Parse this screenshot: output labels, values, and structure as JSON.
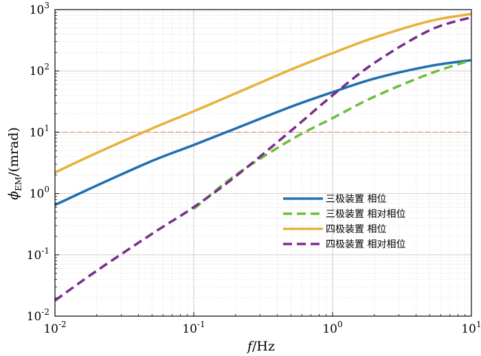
{
  "chart_data": {
    "type": "line",
    "x_scale": "log",
    "y_scale": "log",
    "xlim": [
      0.01,
      10
    ],
    "ylim": [
      0.01,
      1000
    ],
    "grid": true,
    "legend_position": "lower-right",
    "xlabel": {
      "main": "f",
      "unit": "/Hz"
    },
    "ylabel": {
      "symbol": "ϕ",
      "sub": "EM",
      "unit": "/(mrad)"
    },
    "x_ticks": [
      {
        "value": 0.01,
        "base": "10",
        "exp": "-2"
      },
      {
        "value": 0.1,
        "base": "10",
        "exp": "-1"
      },
      {
        "value": 1,
        "base": "10",
        "exp": "0"
      },
      {
        "value": 10,
        "base": "10",
        "exp": "1"
      }
    ],
    "y_ticks": [
      {
        "value": 0.01,
        "base": "10",
        "exp": "-2"
      },
      {
        "value": 0.1,
        "base": "10",
        "exp": "-1"
      },
      {
        "value": 1,
        "base": "10",
        "exp": "0"
      },
      {
        "value": 10,
        "base": "10",
        "exp": "1"
      },
      {
        "value": 100,
        "base": "10",
        "exp": "2"
      },
      {
        "value": 1000,
        "base": "10",
        "exp": "3"
      }
    ],
    "reference_line": {
      "y": 10,
      "color": "#e8967e"
    },
    "series": [
      {
        "name": "三极装置 相位",
        "color": "#1f6fb2",
        "dash": "solid",
        "x": [
          0.01,
          0.02,
          0.05,
          0.1,
          0.2,
          0.5,
          1,
          2,
          5,
          10
        ],
        "y": [
          0.65,
          1.35,
          3.4,
          6.2,
          11.5,
          26,
          45,
          75,
          120,
          150
        ]
      },
      {
        "name": "三极装置 相对相位",
        "color": "#6cbf3c",
        "dash": "dashed",
        "x": [
          0.1,
          0.2,
          0.5,
          1,
          2,
          5,
          10
        ],
        "y": [
          0.56,
          2.0,
          7.5,
          17,
          38,
          90,
          150
        ]
      },
      {
        "name": "四极装置 相位",
        "color": "#e8b13a",
        "dash": "solid",
        "x": [
          0.01,
          0.02,
          0.05,
          0.1,
          0.2,
          0.5,
          1,
          2,
          5,
          10
        ],
        "y": [
          2.2,
          4.6,
          11.5,
          22,
          43,
          105,
          195,
          350,
          650,
          850
        ]
      },
      {
        "name": "四极装置 相对相位",
        "color": "#7a2e8c",
        "dash": "dashed",
        "x": [
          0.01,
          0.02,
          0.05,
          0.1,
          0.2,
          0.5,
          1,
          2,
          5,
          10
        ],
        "y": [
          0.018,
          0.055,
          0.22,
          0.6,
          1.9,
          10.5,
          40,
          135,
          460,
          750
        ]
      }
    ]
  }
}
